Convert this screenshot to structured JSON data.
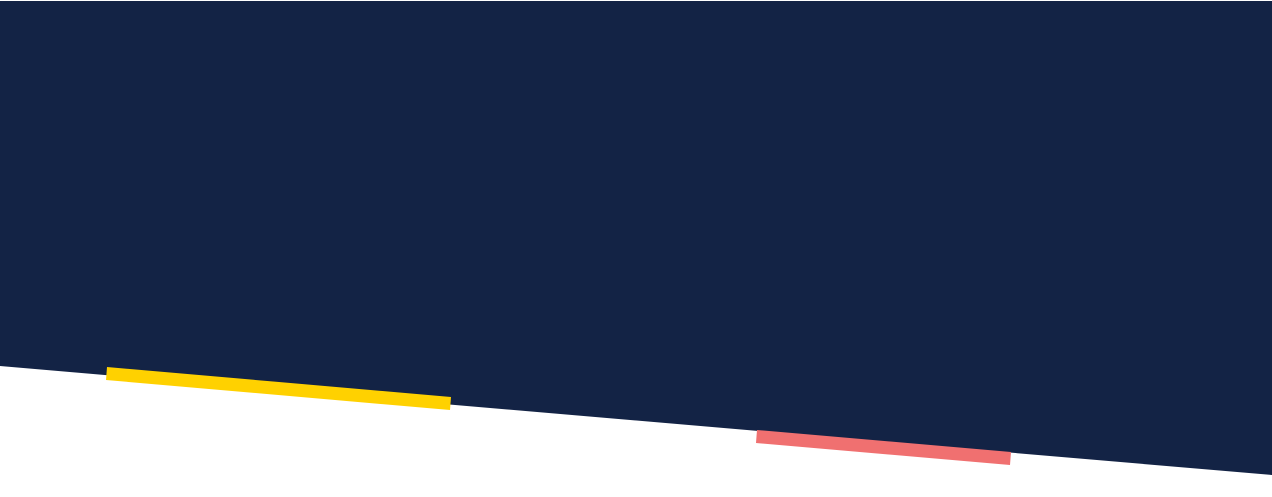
{
  "colors": {
    "background": "#ffffff",
    "banner": "#132345",
    "accent_yellow": "#FFD100",
    "accent_coral": "#F07070"
  }
}
